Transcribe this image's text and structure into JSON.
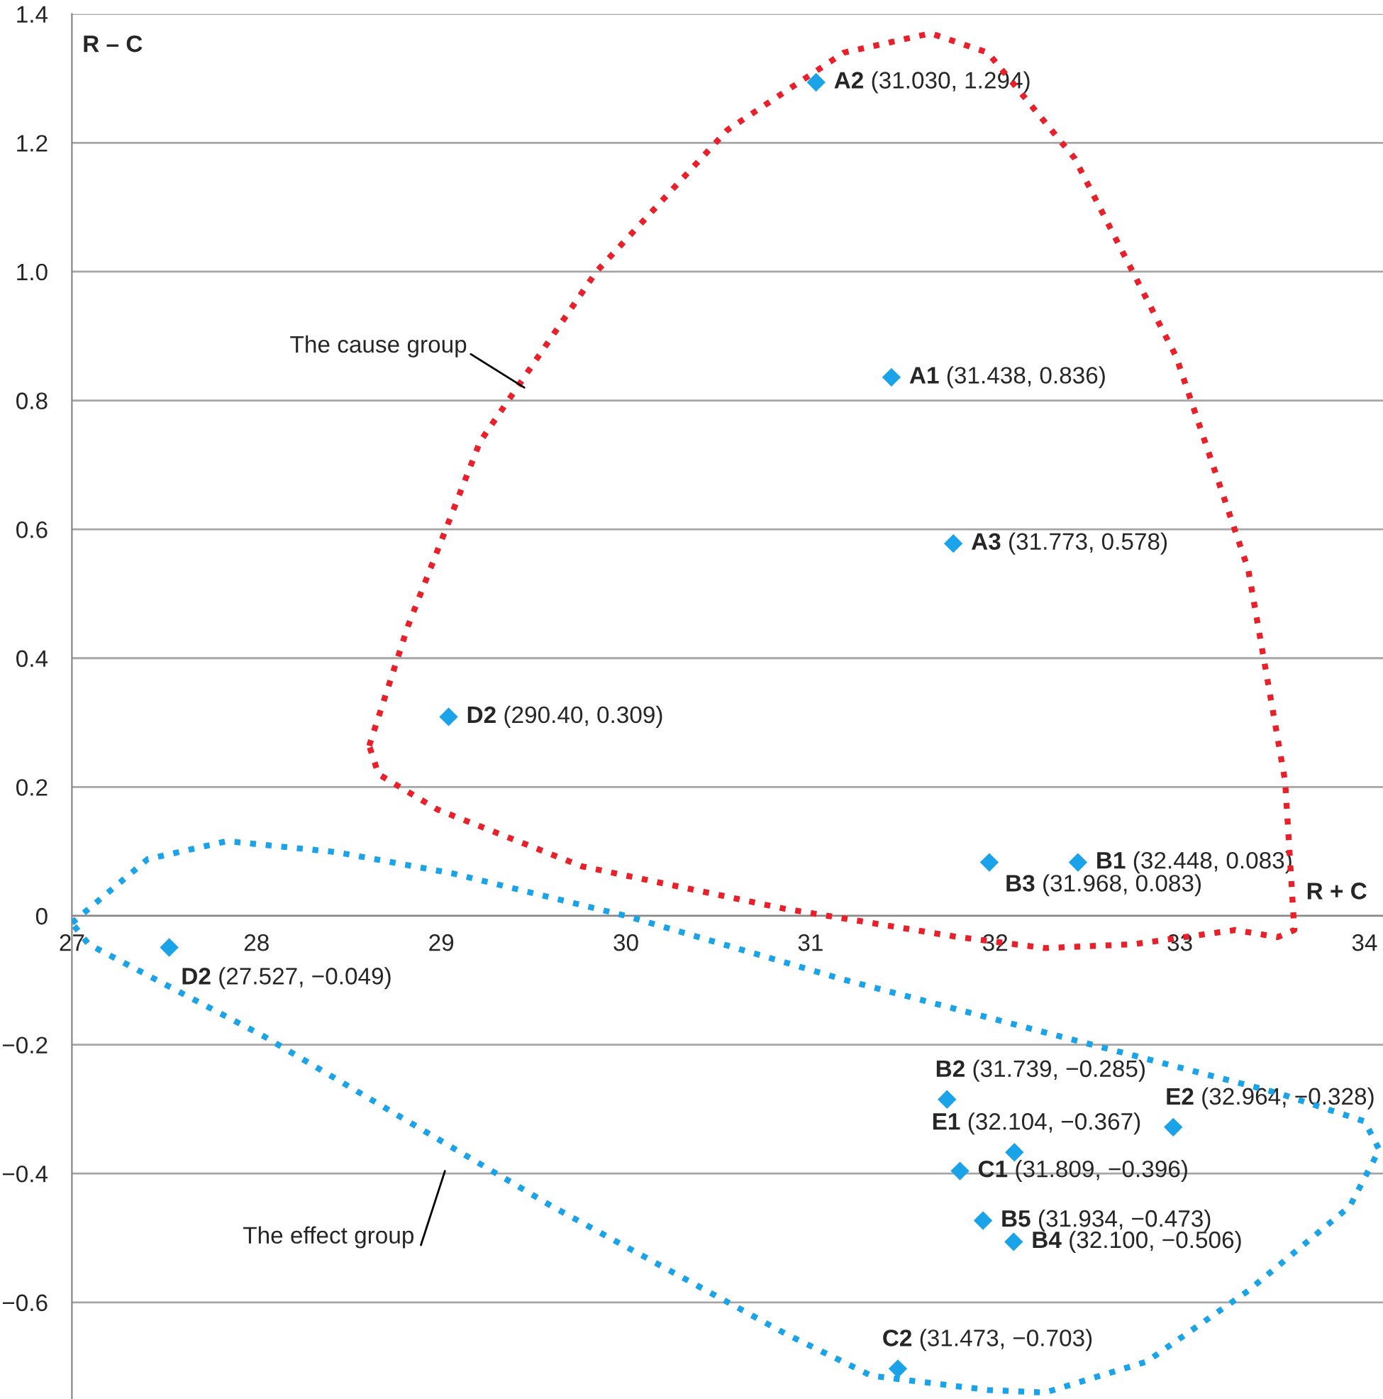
{
  "chart_data": {
    "type": "scatter",
    "xlabel": "R + C",
    "ylabel": "R – C",
    "x": [
      31.03,
      31.438,
      31.773,
      29.04,
      32.448,
      31.968,
      27.527,
      31.739,
      32.964,
      32.104,
      31.809,
      31.934,
      32.1,
      31.473
    ],
    "series": [
      {
        "color": "#1aa3e8",
        "values": [
          1.294,
          0.836,
          0.578,
          0.309,
          0.083,
          0.083,
          -0.049,
          -0.285,
          -0.328,
          -0.367,
          -0.396,
          -0.473,
          -0.506,
          -0.703
        ]
      }
    ],
    "marker": "diamond",
    "xlim": [
      27,
      34.1
    ],
    "xticks": [
      27,
      28,
      29,
      30,
      31,
      32,
      33,
      34
    ],
    "ylim": [
      -0.75,
      1.4
    ],
    "yticks": [
      {
        "value": -0.6,
        "label": "−0.6"
      },
      {
        "value": -0.4,
        "label": "−0.4"
      },
      {
        "value": -0.2,
        "label": "−0.2"
      },
      0,
      {
        "value": 0.2,
        "label": "0.2"
      },
      {
        "value": 0.4,
        "label": "0.4"
      },
      {
        "value": 0.6,
        "label": "0.6"
      },
      {
        "value": 0.8,
        "label": "0.8"
      },
      {
        "value": 1.0,
        "label": "1.0"
      },
      {
        "value": 1.2,
        "label": "1.2"
      },
      {
        "value": 1.4,
        "label": "1.4"
      }
    ],
    "grid": "y",
    "annotations": [
      {
        "text": "A2 (31.030, 1.294)",
        "x": 31.03,
        "y": 1.294
      },
      {
        "text": "A1 (31.438, 0.836)",
        "x": 31.438,
        "y": 0.836
      },
      {
        "text": "A3 (31.773, 0.578)",
        "x": 31.773,
        "y": 0.578
      },
      {
        "text": "D2 (290.40, 0.309)",
        "x": 29.04,
        "y": 0.309
      },
      {
        "text": "B1 (32.448, 0.083)",
        "x": 32.448,
        "y": 0.083
      },
      {
        "text": "B3 (31.968, 0.083)",
        "x": 31.968,
        "y": 0.083
      },
      {
        "text": "D2 (27.527, −0.049)",
        "x": 27.527,
        "y": -0.049
      },
      {
        "text": "B2 (31.739, −0.285)",
        "x": 31.739,
        "y": -0.285
      },
      {
        "text": "E2 (32.964, −0.328)",
        "x": 32.964,
        "y": -0.328
      },
      {
        "text": "E1 (32.104, −0.367)",
        "x": 32.104,
        "y": -0.367
      },
      {
        "text": "C1 (31.809, −0.396)",
        "x": 31.809,
        "y": -0.396
      },
      {
        "text": "B5 (31.934, −0.473)",
        "x": 31.934,
        "y": -0.473
      },
      {
        "text": "B4 (32.100, −0.506)",
        "x": 32.1,
        "y": -0.506
      },
      {
        "text": "C2 (31.473, −0.703)",
        "x": 31.473,
        "y": -0.703
      },
      "The cause group",
      "The effect group"
    ]
  }
}
